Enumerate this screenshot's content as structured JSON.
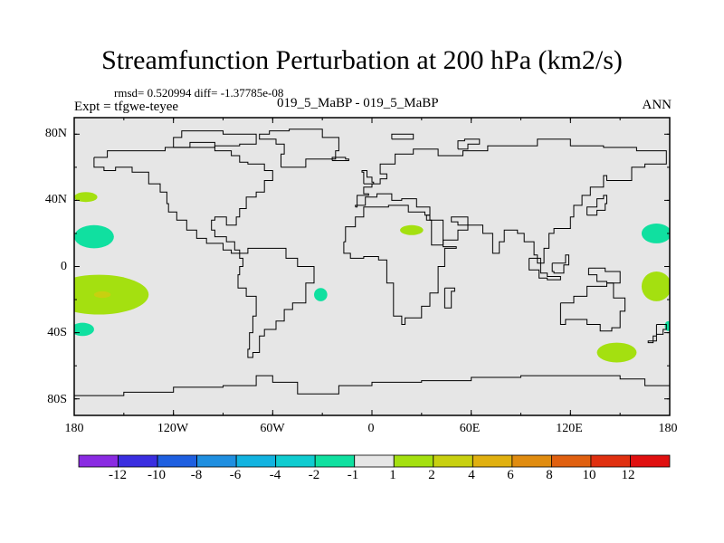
{
  "chart_data": {
    "type": "heatmap",
    "title": "Streamfunction Perturbation at 200 hPa (km2/s)",
    "stats": "rmsd= 0.520994 diff= -1.37785e-08",
    "left_label": "Expt = tfgwe-teyee",
    "center_label": "019_5_MaBP - 019_5_MaBP",
    "right_label": "ANN",
    "x_ticks": [
      "180",
      "120W",
      "60W",
      "0",
      "60E",
      "120E",
      "180"
    ],
    "x_tick_values": [
      -180,
      -120,
      -60,
      0,
      60,
      120,
      180
    ],
    "y_ticks": [
      "80N",
      "40N",
      "0",
      "40S",
      "80S"
    ],
    "y_tick_values": [
      80,
      40,
      0,
      -40,
      -80
    ],
    "xlim": [
      -180,
      180
    ],
    "ylim": [
      -90,
      90
    ],
    "colorbar_labels": [
      "-12",
      "-10",
      "-8",
      "-6",
      "-4",
      "-2",
      "-1",
      "1",
      "2",
      "4",
      "6",
      "8",
      "10",
      "12"
    ],
    "colorbar_colors": [
      "#8a2be2",
      "#3a2ee0",
      "#1e5fe0",
      "#1f8fe0",
      "#12b3e0",
      "#10ccd0",
      "#10e0a0",
      "#e6e6e6",
      "#a4e010",
      "#c8d010",
      "#e0b010",
      "#e08c10",
      "#e06010",
      "#e03010",
      "#e01010"
    ],
    "blobs": [
      {
        "name": "east-pacific-pos-south",
        "lon": -165,
        "lat": -17,
        "rlon": 30,
        "rlat": 12,
        "color": "#a4e010"
      },
      {
        "name": "east-pacific-pos-core",
        "lon": -163,
        "lat": -17,
        "rlon": 5,
        "rlat": 2,
        "color": "#c8d010"
      },
      {
        "name": "east-pacific-neg-north",
        "lon": -168,
        "lat": 18,
        "rlon": 12,
        "rlat": 7,
        "color": "#10e0a0"
      },
      {
        "name": "east-pacific-pos-north",
        "lon": -173,
        "lat": 42,
        "rlon": 7,
        "rlat": 3,
        "color": "#a4e010"
      },
      {
        "name": "east-pacific-neg-south",
        "lon": -175,
        "lat": -38,
        "rlon": 7,
        "rlat": 4,
        "color": "#10e0a0"
      },
      {
        "name": "south-atlantic-neg",
        "lon": -31,
        "lat": -17,
        "rlon": 4,
        "rlat": 4,
        "color": "#10e0a0"
      },
      {
        "name": "north-africa-pos",
        "lon": 24,
        "lat": 22,
        "rlon": 7,
        "rlat": 3,
        "color": "#a4e010"
      },
      {
        "name": "west-pacific-neg",
        "lon": 172,
        "lat": 20,
        "rlon": 9,
        "rlat": 6,
        "color": "#10e0a0"
      },
      {
        "name": "west-pacific-pos-south",
        "lon": 172,
        "lat": -12,
        "rlon": 9,
        "rlat": 9,
        "color": "#a4e010"
      },
      {
        "name": "tasman-pos",
        "lon": 148,
        "lat": -52,
        "rlon": 12,
        "rlat": 6,
        "color": "#a4e010"
      },
      {
        "name": "west-pacific-neg-south",
        "lon": 179,
        "lat": -36,
        "rlon": 2,
        "rlat": 3,
        "color": "#10e0a0"
      }
    ]
  }
}
